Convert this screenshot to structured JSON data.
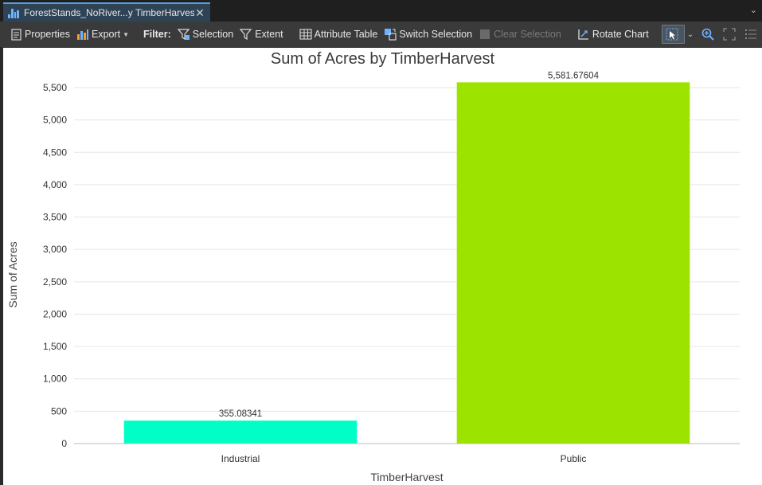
{
  "tab": {
    "label": "ForestStands_NoRiver...y TimberHarvest"
  },
  "toolbar": {
    "properties_label": "Properties",
    "export_label": "Export",
    "filter_label": "Filter:",
    "selection_label": "Selection",
    "extent_label": "Extent",
    "attribute_table_label": "Attribute Table",
    "switch_selection_label": "Switch Selection",
    "clear_selection_label": "Clear Selection",
    "rotate_chart_label": "Rotate Chart"
  },
  "colors": {
    "industrial_bar": "#00ffc6",
    "public_bar": "#9ce400"
  },
  "chart_data": {
    "type": "bar",
    "title": "Sum of Acres by TimberHarvest",
    "xlabel": "TimberHarvest",
    "ylabel": "Sum of Acres",
    "categories": [
      "Industrial",
      "Public"
    ],
    "values": [
      355.08341,
      5581.67604
    ],
    "data_labels": [
      "355.08341",
      "5,581.67604"
    ],
    "ylim": [
      0,
      5500
    ],
    "yticks": [
      0,
      500,
      1000,
      1500,
      2000,
      2500,
      3000,
      3500,
      4000,
      4500,
      5000,
      5500
    ],
    "ytick_labels": [
      "0",
      "500",
      "1,000",
      "1,500",
      "2,000",
      "2,500",
      "3,000",
      "3,500",
      "4,000",
      "4,500",
      "5,000",
      "5,500"
    ],
    "grid": true,
    "legend": "none"
  }
}
